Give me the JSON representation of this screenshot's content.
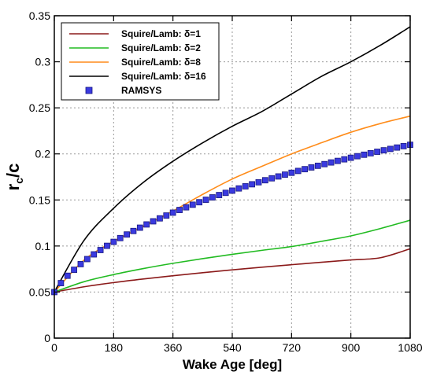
{
  "chart_data": {
    "type": "line",
    "xlabel": "Wake Age [deg]",
    "ylabel_main": "r",
    "ylabel_sub": "c",
    "ylabel_tail": "/c",
    "xlim": [
      0,
      1080
    ],
    "ylim": [
      0,
      0.35
    ],
    "x_ticks": [
      0,
      180,
      360,
      540,
      720,
      900,
      1080
    ],
    "y_ticks": [
      0,
      0.05,
      0.1,
      0.15,
      0.2,
      0.25,
      0.3,
      0.35
    ],
    "x_tick_labels": [
      "0",
      "180",
      "360",
      "540",
      "720",
      "900",
      "1080"
    ],
    "y_tick_labels": [
      "0",
      "0.05",
      "0.1",
      "0.15",
      "0.2",
      "0.25",
      "0.3",
      "0.35"
    ],
    "grid": true,
    "legend_position": "top-left",
    "series": [
      {
        "name": "Squire/Lamb: δ=1",
        "color": "#8b1a1a",
        "style": "line",
        "x": [
          0,
          90,
          180,
          270,
          360,
          450,
          540,
          630,
          720,
          810,
          900,
          990,
          1080
        ],
        "y": [
          0.05,
          0.0557,
          0.0603,
          0.0642,
          0.0677,
          0.071,
          0.0741,
          0.077,
          0.0797,
          0.0823,
          0.0849,
          0.0873,
          0.097
        ]
      },
      {
        "name": "Squire/Lamb: δ=2",
        "color": "#22bb22",
        "style": "line",
        "x": [
          0,
          90,
          180,
          270,
          360,
          450,
          540,
          630,
          720,
          810,
          900,
          990,
          1080
        ],
        "y": [
          0.05,
          0.0612,
          0.069,
          0.0755,
          0.0812,
          0.0863,
          0.091,
          0.0953,
          0.0994,
          0.105,
          0.111,
          0.119,
          0.128
        ]
      },
      {
        "name": "Squire/Lamb: δ=8",
        "color": "#ff8c1a",
        "style": "line",
        "x": [
          0,
          90,
          180,
          270,
          360,
          450,
          540,
          630,
          720,
          810,
          900,
          990,
          1080
        ],
        "y": [
          0.05,
          0.0846,
          0.105,
          0.1212,
          0.138,
          0.156,
          0.1727,
          0.1865,
          0.2,
          0.212,
          0.2235,
          0.233,
          0.241
        ]
      },
      {
        "name": "Squire/Lamb: δ=16",
        "color": "#000000",
        "style": "line",
        "x": [
          0,
          90,
          180,
          270,
          360,
          450,
          540,
          630,
          720,
          810,
          900,
          990,
          1080
        ],
        "y": [
          0.05,
          0.106,
          0.141,
          0.169,
          0.192,
          0.212,
          0.23,
          0.246,
          0.265,
          0.284,
          0.3,
          0.318,
          0.338
        ]
      },
      {
        "name": "RAMSYS",
        "color": "#3a3ae0",
        "style": "markers",
        "x": [
          0,
          20,
          40,
          60,
          80,
          100,
          120,
          140,
          160,
          180,
          200,
          220,
          240,
          260,
          280,
          300,
          320,
          340,
          360,
          380,
          400,
          420,
          440,
          460,
          480,
          500,
          520,
          540,
          560,
          580,
          600,
          620,
          640,
          660,
          680,
          700,
          720,
          740,
          760,
          780,
          800,
          820,
          840,
          860,
          880,
          900,
          920,
          940,
          960,
          980,
          1000,
          1020,
          1040,
          1060,
          1080
        ],
        "y": [
          0.05,
          0.0597,
          0.0677,
          0.0742,
          0.0803,
          0.0858,
          0.0909,
          0.0956,
          0.1002,
          0.1045,
          0.1086,
          0.1125,
          0.1163,
          0.1199,
          0.1234,
          0.1268,
          0.13,
          0.1331,
          0.1362,
          0.1391,
          0.142,
          0.1448,
          0.1475,
          0.1502,
          0.1528,
          0.1553,
          0.1577,
          0.1601,
          0.1625,
          0.1648,
          0.167,
          0.1692,
          0.1714,
          0.1735,
          0.1755,
          0.1775,
          0.1795,
          0.1815,
          0.1834,
          0.1853,
          0.1871,
          0.1889,
          0.1907,
          0.1924,
          0.1941,
          0.1958,
          0.1975,
          0.1991,
          0.2007,
          0.2023,
          0.2039,
          0.2054,
          0.2069,
          0.2084,
          0.2099
        ]
      }
    ]
  }
}
